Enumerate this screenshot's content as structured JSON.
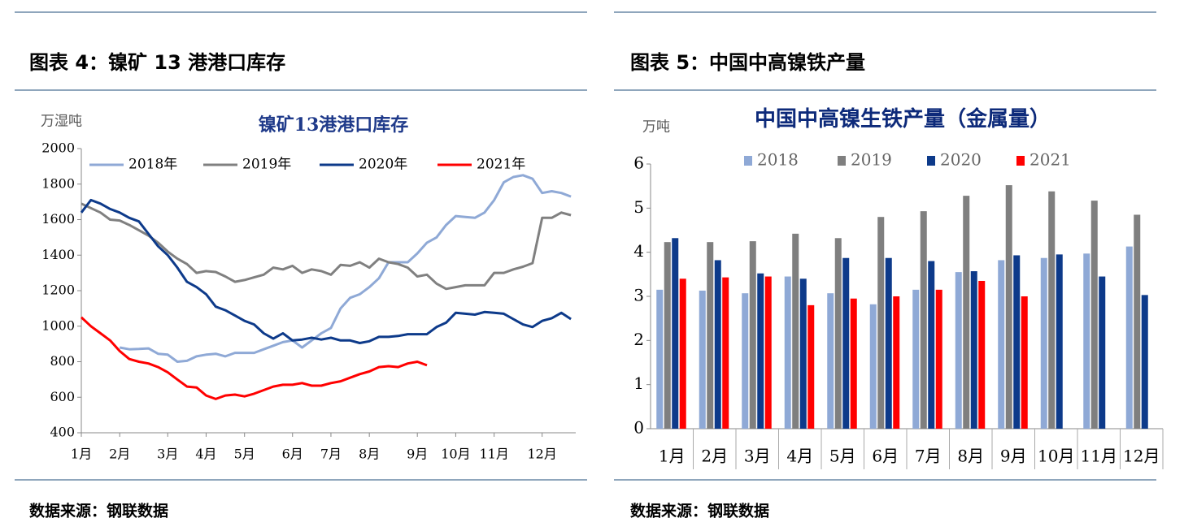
{
  "panels": [
    {
      "header": "图表 4：镍矿 13 港港口库存",
      "source": "数据来源：钢联数据"
    },
    {
      "header": "图表 5：中国中高镍铁产量",
      "source": "数据来源：钢联数据"
    }
  ],
  "chart_data": [
    {
      "type": "line",
      "title": "镍矿13港港口库存",
      "y_label": "万湿吨",
      "categories": [
        "1月",
        null,
        null,
        null,
        "2月",
        null,
        null,
        null,
        null,
        "3月",
        null,
        null,
        null,
        "4月",
        null,
        null,
        null,
        "5月",
        null,
        null,
        null,
        null,
        "6月",
        null,
        null,
        null,
        "7月",
        null,
        null,
        null,
        "8月",
        null,
        null,
        null,
        null,
        "9月",
        null,
        null,
        null,
        "10月",
        null,
        null,
        null,
        "11月",
        null,
        null,
        null,
        null,
        "12月",
        null,
        null,
        null
      ],
      "ylim": [
        400,
        2000
      ],
      "yticks": [
        400,
        600,
        800,
        1000,
        1200,
        1400,
        1600,
        1800,
        2000
      ],
      "series": [
        {
          "name": "2018年",
          "color": "#8fa9d6",
          "values": [
            null,
            null,
            null,
            null,
            880,
            870,
            872,
            875,
            845,
            840,
            800,
            805,
            830,
            840,
            845,
            830,
            850,
            850,
            850,
            870,
            890,
            910,
            920,
            880,
            920,
            960,
            990,
            1100,
            1160,
            1180,
            1220,
            1270,
            1360,
            1360,
            1360,
            1410,
            1470,
            1500,
            1570,
            1620,
            1615,
            1610,
            1640,
            1710,
            1810,
            1840,
            1850,
            1830,
            1750,
            1760,
            1750,
            1730
          ]
        },
        {
          "name": "2019年",
          "color": "#808080",
          "values": [
            1690,
            1665,
            1640,
            1600,
            1595,
            1570,
            1540,
            1510,
            1470,
            1420,
            1380,
            1350,
            1300,
            1310,
            1305,
            1280,
            1250,
            1260,
            1275,
            1290,
            1330,
            1320,
            1340,
            1300,
            1320,
            1310,
            1290,
            1345,
            1340,
            1360,
            1330,
            1380,
            1360,
            1350,
            1330,
            1280,
            1290,
            1240,
            1210,
            1220,
            1230,
            1230,
            1230,
            1300,
            1300,
            1320,
            1335,
            1355,
            1610,
            1610,
            1640,
            1625
          ]
        },
        {
          "name": "2020年",
          "color": "#0d3a8a",
          "values": [
            1640,
            1710,
            1690,
            1660,
            1640,
            1610,
            1590,
            1520,
            1450,
            1400,
            1330,
            1250,
            1220,
            1180,
            1110,
            1090,
            1060,
            1030,
            1010,
            960,
            930,
            960,
            920,
            925,
            935,
            925,
            935,
            920,
            920,
            905,
            915,
            940,
            940,
            945,
            955,
            955,
            955,
            995,
            1020,
            1075,
            1070,
            1065,
            1080,
            1075,
            1070,
            1040,
            1010,
            995,
            1030,
            1045,
            1075,
            1040
          ]
        },
        {
          "name": "2021年",
          "color": "#ff0000",
          "values": [
            1050,
            1000,
            960,
            920,
            860,
            815,
            800,
            790,
            770,
            740,
            700,
            660,
            655,
            610,
            590,
            610,
            615,
            605,
            620,
            640,
            660,
            670,
            670,
            680,
            665,
            665,
            680,
            690,
            710,
            730,
            745,
            770,
            775,
            770,
            790,
            800,
            780,
            null,
            null,
            null,
            null,
            null,
            null,
            null,
            null,
            null,
            null,
            null,
            null,
            null,
            null,
            null
          ]
        }
      ]
    },
    {
      "type": "bar",
      "title": "中国中高镍生铁产量（金属量）",
      "y_label": "万吨",
      "categories": [
        "1月",
        "2月",
        "3月",
        "4月",
        "5月",
        "6月",
        "7月",
        "8月",
        "9月",
        "10月",
        "11月",
        "12月"
      ],
      "ylim": [
        0,
        6
      ],
      "yticks": [
        0,
        1,
        2,
        3,
        4,
        5,
        6
      ],
      "series": [
        {
          "name": "2018",
          "color": "#8fa9d6",
          "values": [
            3.15,
            3.13,
            3.07,
            3.45,
            3.07,
            2.82,
            3.15,
            3.55,
            3.82,
            3.87,
            3.97,
            4.13
          ]
        },
        {
          "name": "2019",
          "color": "#7f7f7f",
          "values": [
            4.23,
            4.23,
            4.25,
            4.42,
            4.32,
            4.8,
            4.93,
            5.28,
            5.52,
            5.38,
            5.17,
            4.85
          ]
        },
        {
          "name": "2020",
          "color": "#0d3a8a",
          "values": [
            4.32,
            3.82,
            3.52,
            3.4,
            3.87,
            3.87,
            3.8,
            3.57,
            3.93,
            3.95,
            3.45,
            3.03
          ]
        },
        {
          "name": "2021",
          "color": "#ff0000",
          "values": [
            3.4,
            3.43,
            3.45,
            2.8,
            2.95,
            3.0,
            3.15,
            3.35,
            3.0,
            null,
            null,
            null
          ]
        }
      ]
    }
  ]
}
